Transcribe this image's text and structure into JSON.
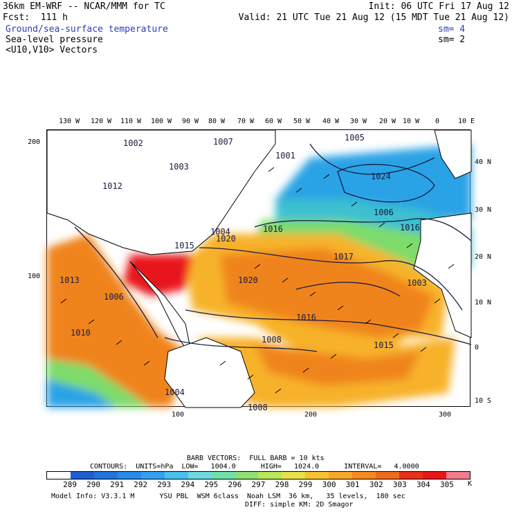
{
  "header": {
    "model_title": "36km EM-WRF -- NCAR/MMM for TC",
    "init": "Init: 06 UTC Fri 17 Aug 12",
    "fcst": "Fcst:  111 h",
    "valid": "Valid: 21 UTC Tue 21 Aug 12 (15 MDT Tue 21 Aug 12)",
    "fields": [
      {
        "name": "Ground/sea-surface temperature",
        "sm": "sm= 4",
        "color": "#2a3fb8"
      },
      {
        "name": "Sea-level pressure",
        "sm": "sm= 2",
        "color": "#000000"
      },
      {
        "name": "<U10,V10> Vectors",
        "sm": "",
        "color": "#000000"
      }
    ]
  },
  "map": {
    "top_lon_labels": [
      "130 W",
      "120 W",
      "110 W",
      "100 W",
      "90 W",
      "80 W",
      "70 W",
      "60 W",
      "50 W",
      "40 W",
      "30 W",
      "20 W",
      "10 W",
      "0",
      "10 E"
    ],
    "right_lat_labels": [
      "40 N",
      "30 N",
      "20 N",
      "10 N",
      "0",
      "10 S"
    ],
    "left_y_labels": [
      "200",
      "100"
    ],
    "bottom_x_labels": [
      "100",
      "200",
      "300"
    ],
    "pressure_labels": [
      {
        "text": "1002"
      },
      {
        "text": "1007"
      },
      {
        "text": "1001"
      },
      {
        "text": "1005"
      },
      {
        "text": "1003"
      },
      {
        "text": "1012"
      },
      {
        "text": "1024"
      },
      {
        "text": "1006"
      },
      {
        "text": "1016"
      },
      {
        "text": "1016"
      },
      {
        "text": "1020"
      },
      {
        "text": "1015"
      },
      {
        "text": "1004"
      },
      {
        "text": "1017"
      },
      {
        "text": "1013"
      },
      {
        "text": "1020"
      },
      {
        "text": "1003"
      },
      {
        "text": "1006"
      },
      {
        "text": "1016"
      },
      {
        "text": "1010"
      },
      {
        "text": "1008"
      },
      {
        "text": "1015"
      },
      {
        "text": "1004"
      },
      {
        "text": "1008"
      }
    ],
    "colors": {
      "ocean_hot": "#e8161a",
      "ocean_warm": "#f0841b",
      "ocean_mid": "#f7b229",
      "ocean_cool": "#7ddc6a",
      "ocean_cold": "#2ba3e6",
      "land": "#ffffff"
    }
  },
  "footer": {
    "barb_line": "BARB VECTORS:  FULL BARB = 10 kts",
    "contours_line": "CONTOURS:  UNITS=hPa  LOW=   1004.0      HIGH=   1024.0      INTERVAL=   4.0000",
    "colorbar_labels": [
      "289",
      "290",
      "291",
      "292",
      "293",
      "294",
      "295",
      "296",
      "297",
      "298",
      "299",
      "300",
      "301",
      "302",
      "303",
      "304",
      "305"
    ],
    "colorbar_unit": "K",
    "colorbar_colors": [
      "#ffffff",
      "#1f5fd0",
      "#2374dd",
      "#2a8ae8",
      "#35a0ee",
      "#49c0f0",
      "#6fd8e0",
      "#6fe0a8",
      "#8fe070",
      "#b8e85a",
      "#e8e04a",
      "#f7c234",
      "#f7a82a",
      "#f48a20",
      "#ee6a1c",
      "#e8301a",
      "#e81818",
      "#f07c8c"
    ],
    "model_info": "Model Info: V3.3.1 M      YSU PBL  WSM 6class  Noah LSM  36 km,   35 levels,  180 sec",
    "model_info2": "DIFF: simple KM: 2D Smagor"
  }
}
